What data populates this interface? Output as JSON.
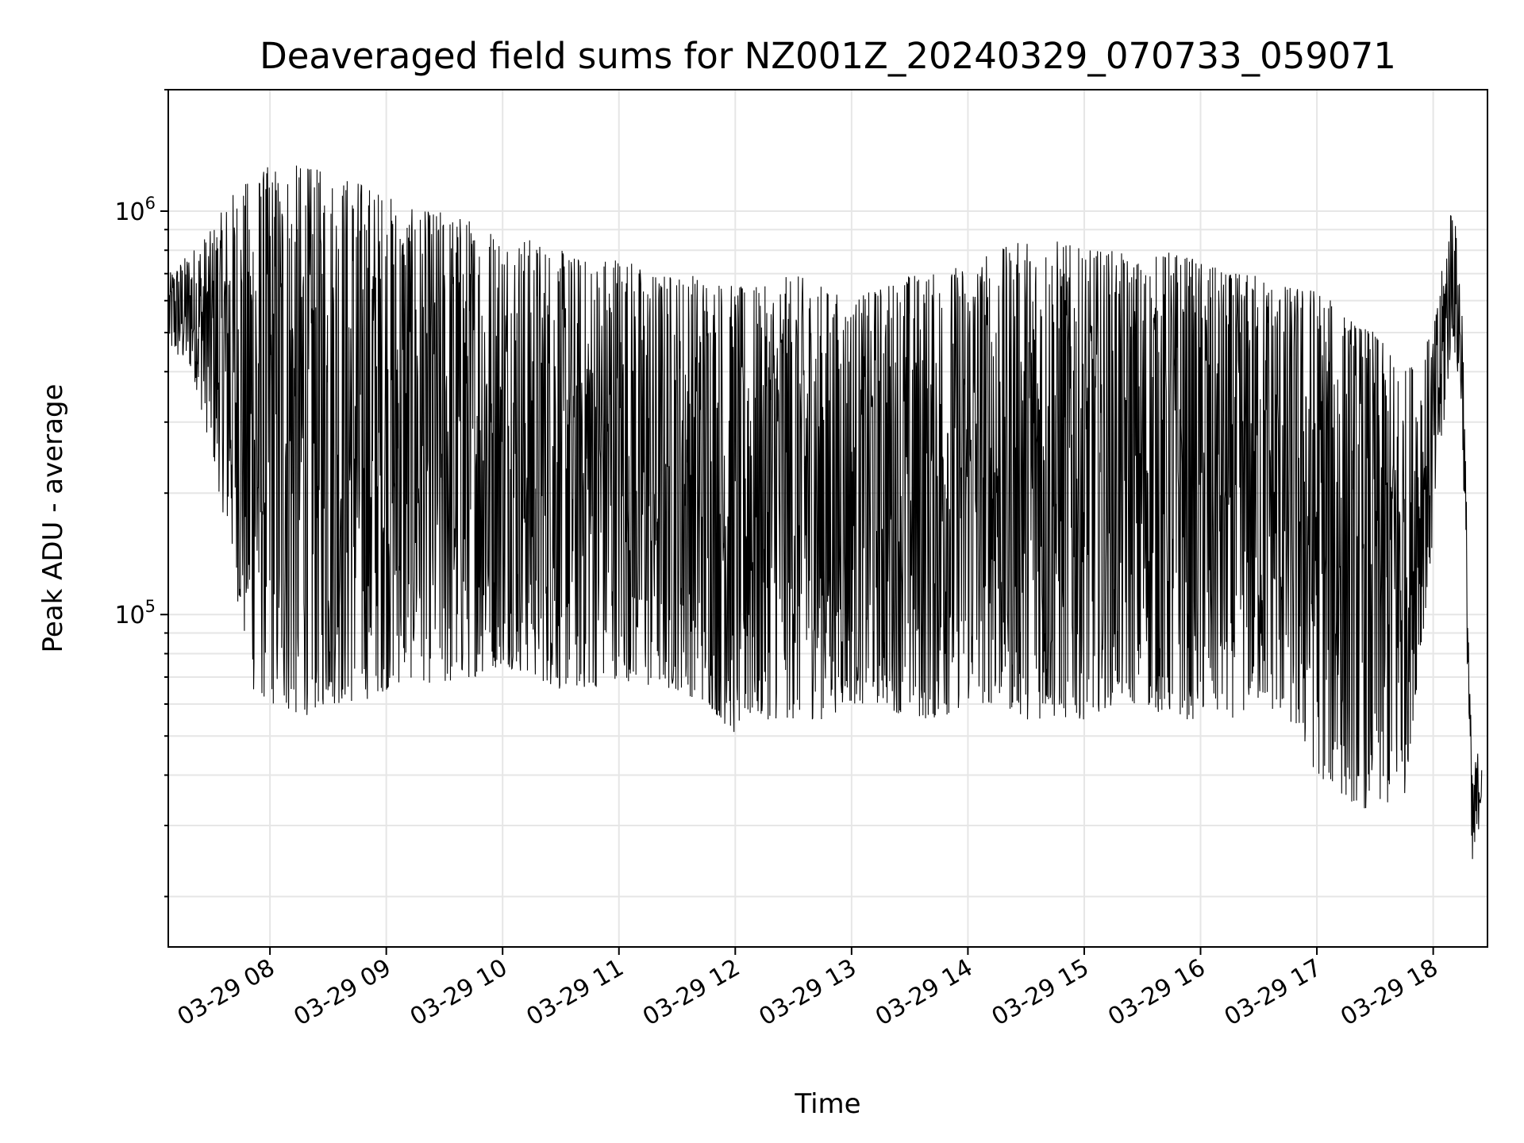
{
  "chart_data": {
    "type": "line",
    "title": "Deaveraged field sums for NZ001Z_20240329_070733_059071",
    "xlabel": "Time",
    "ylabel": "Peak ADU - average",
    "y_scale": "log",
    "ylim": [
      15000,
      2000000
    ],
    "xlim": [
      "2024-03-29 07:07:33",
      "2024-03-29 18:28:00"
    ],
    "x_ticks": [
      "03-29 08",
      "03-29 09",
      "03-29 10",
      "03-29 11",
      "03-29 12",
      "03-29 13",
      "03-29 14",
      "03-29 15",
      "03-29 16",
      "03-29 17",
      "03-29 18"
    ],
    "y_ticks": [
      {
        "value": 100000,
        "base": "10",
        "exp": "5"
      },
      {
        "value": 1000000,
        "base": "10",
        "exp": "6"
      }
    ],
    "grid": true,
    "line_color": "#000000",
    "series": [
      {
        "x": [
          "2024-03-29 07:08",
          "2024-03-29 07:20",
          "2024-03-29 07:30",
          "2024-03-29 07:40",
          "2024-03-29 07:50",
          "2024-03-29 08:00",
          "2024-03-29 08:15",
          "2024-03-29 08:30",
          "2024-03-29 08:45",
          "2024-03-29 09:00",
          "2024-03-29 09:15",
          "2024-03-29 09:30",
          "2024-03-29 09:45",
          "2024-03-29 10:00",
          "2024-03-29 10:15",
          "2024-03-29 10:30",
          "2024-03-29 10:45",
          "2024-03-29 11:00",
          "2024-03-29 11:15",
          "2024-03-29 11:30",
          "2024-03-29 11:45",
          "2024-03-29 12:00",
          "2024-03-29 12:15",
          "2024-03-29 12:30",
          "2024-03-29 12:45",
          "2024-03-29 13:00",
          "2024-03-29 13:15",
          "2024-03-29 13:30",
          "2024-03-29 13:45",
          "2024-03-29 14:00",
          "2024-03-29 14:15",
          "2024-03-29 14:30",
          "2024-03-29 14:45",
          "2024-03-29 15:00",
          "2024-03-29 15:15",
          "2024-03-29 15:30",
          "2024-03-29 15:45",
          "2024-03-29 16:00",
          "2024-03-29 16:15",
          "2024-03-29 16:30",
          "2024-03-29 16:45",
          "2024-03-29 17:00",
          "2024-03-29 17:15",
          "2024-03-29 17:30",
          "2024-03-29 17:45",
          "2024-03-29 18:00",
          "2024-03-29 18:10",
          "2024-03-29 18:15",
          "2024-03-29 18:20",
          "2024-03-29 18:25"
        ],
        "y_low": [
          450000,
          400000,
          250000,
          140000,
          65000,
          60000,
          55000,
          60000,
          60000,
          65000,
          70000,
          65000,
          70000,
          75000,
          70000,
          65000,
          65000,
          70000,
          65000,
          65000,
          60000,
          50000,
          55000,
          55000,
          55000,
          60000,
          60000,
          55000,
          55000,
          60000,
          60000,
          55000,
          55000,
          55000,
          60000,
          60000,
          55000,
          55000,
          55000,
          60000,
          55000,
          40000,
          35000,
          32000,
          35000,
          150000,
          500000,
          300000,
          20000,
          35000
        ],
        "y_high": [
          700000,
          800000,
          900000,
          1100000,
          1200000,
          1300000,
          1300000,
          1250000,
          1200000,
          1100000,
          1000000,
          1000000,
          950000,
          900000,
          850000,
          800000,
          750000,
          800000,
          700000,
          700000,
          700000,
          650000,
          650000,
          700000,
          650000,
          600000,
          650000,
          700000,
          700000,
          750000,
          800000,
          850000,
          850000,
          800000,
          800000,
          750000,
          800000,
          750000,
          700000,
          700000,
          650000,
          650000,
          550000,
          500000,
          400000,
          500000,
          1100000,
          600000,
          40000,
          50000
        ]
      }
    ]
  }
}
